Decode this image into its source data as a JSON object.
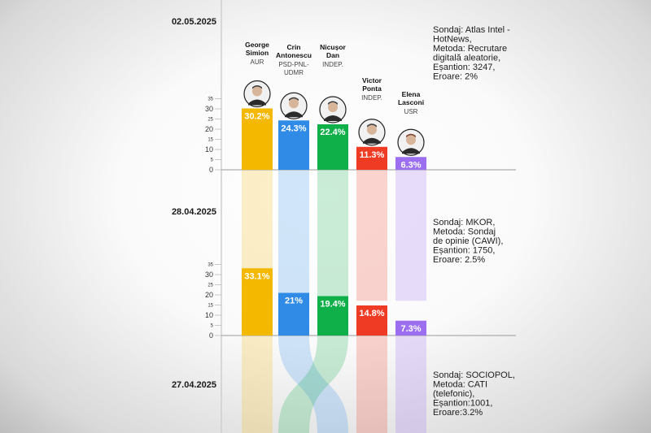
{
  "colors": {
    "AUR": "#f5b800",
    "PSD-PNL-UDMR": "#2f8be6",
    "INDEP_DAN": "#0faf4a",
    "INDEP_PONTA": "#ef3b24",
    "USR": "#9b6ff0"
  },
  "candidates": [
    {
      "name1": "George",
      "name2": "Simion",
      "party": "AUR",
      "color": "#f5b800",
      "avatar": "avatar-simion"
    },
    {
      "name1": "Crin",
      "name2": "Antonescu",
      "party": "PSD-PNL-UDMR",
      "color": "#2f8be6",
      "avatar": "avatar-antonescu"
    },
    {
      "name1": "Nicușor",
      "name2": "Dan",
      "party": "INDEP.",
      "color": "#0faf4a",
      "avatar": "avatar-dan"
    },
    {
      "name1": "Victor",
      "name2": "Ponta",
      "party": "INDEP.",
      "color": "#ef3b24",
      "avatar": "avatar-ponta"
    },
    {
      "name1": "Elena",
      "name2": "Lasconi",
      "party": "USR",
      "color": "#9b6ff0",
      "avatar": "avatar-lasconi"
    }
  ],
  "chart_data": [
    {
      "type": "bar",
      "date": "02.05.2025",
      "categories": [
        "George Simion",
        "Crin Antonescu",
        "Nicușor Dan",
        "Victor Ponta",
        "Elena Lasconi"
      ],
      "values": [
        30.2,
        24.3,
        22.4,
        11.3,
        6.3
      ],
      "value_labels": [
        "30.2%",
        "24.3%",
        "22.4%",
        "11.3%",
        "6.3%"
      ],
      "ylim": [
        0,
        35
      ],
      "yticks": [
        "0",
        "5",
        "10",
        "15",
        "20",
        "25",
        "30",
        "35"
      ],
      "note": [
        "Sondaj: Atlas Intel -",
        "HotNews,",
        "Metoda: Recrutare",
        "digitală aleatorie,",
        "Eșantion: 3247,",
        "Eroare: 2%"
      ]
    },
    {
      "type": "bar",
      "date": "28.04.2025",
      "categories": [
        "George Simion",
        "Crin Antonescu",
        "Nicușor Dan",
        "Victor Ponta",
        "Elena Lasconi"
      ],
      "values": [
        33.1,
        21,
        19.4,
        14.8,
        7.3
      ],
      "value_labels": [
        "33.1%",
        "21%",
        "19.4%",
        "14.8%",
        "7.3%"
      ],
      "ylim": [
        0,
        35
      ],
      "yticks": [
        "0",
        "5",
        "10",
        "15",
        "20",
        "25",
        "30",
        "35"
      ],
      "note": [
        "Sondaj: MKOR,",
        "Metoda: Sondaj",
        "de opinie (CAWI),",
        "Eșantion: 1750,",
        "Eroare: 2.5%"
      ]
    },
    {
      "type": "bar",
      "date": "27.04.2025",
      "categories": [],
      "values": [],
      "value_labels": [],
      "note": [
        "Sondaj: SOCIOPOL,",
        "Metoda: CATI",
        "(telefonic),",
        "Eșantion:1001,",
        "Eroare:3.2%"
      ]
    }
  ]
}
